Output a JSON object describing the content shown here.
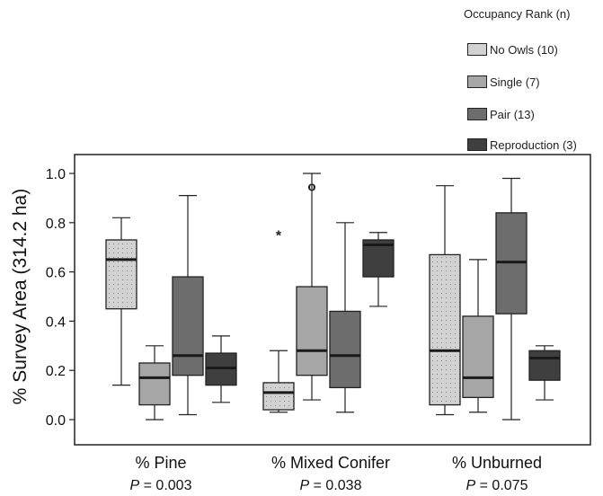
{
  "chart_data": {
    "type": "box",
    "ylabel": "% Survey Area (314.2 ha)",
    "ylim": [
      0,
      1.05
    ],
    "yticks": [
      "0.0",
      "0.2",
      "0.4",
      "0.6",
      "0.8",
      "1.0"
    ],
    "legend": {
      "title": "Occupancy Rank (n)",
      "placement": "top-right",
      "entries": [
        "No Owls (10)",
        "Single (7)",
        "Pair (13)",
        "Reproduction (3)"
      ]
    },
    "categories": [
      {
        "label": "% Pine",
        "p_prefix": "P",
        "p_value": "= 0.003"
      },
      {
        "label": "% Mixed Conifer",
        "p_prefix": "P",
        "p_value": "= 0.038"
      },
      {
        "label": "% Unburned",
        "p_prefix": "P",
        "p_value": "= 0.075"
      }
    ],
    "series": [
      {
        "name": "No Owls (10)",
        "color": "#d2d2d2",
        "stippled": true,
        "boxes": [
          {
            "min": 0.14,
            "q1": 0.45,
            "median": 0.65,
            "q3": 0.73,
            "max": 0.82
          },
          {
            "min": 0.03,
            "q1": 0.04,
            "median": 0.11,
            "q3": 0.15,
            "max": 0.28
          },
          {
            "min": 0.02,
            "q1": 0.06,
            "median": 0.28,
            "q3": 0.67,
            "max": 0.95
          }
        ]
      },
      {
        "name": "Single (7)",
        "color": "#a6a6a6",
        "stippled": false,
        "boxes": [
          {
            "min": 0.0,
            "q1": 0.06,
            "median": 0.17,
            "q3": 0.23,
            "max": 0.3
          },
          {
            "min": 0.08,
            "q1": 0.18,
            "median": 0.28,
            "q3": 0.54,
            "max": 1.0
          },
          {
            "min": 0.03,
            "q1": 0.09,
            "median": 0.17,
            "q3": 0.42,
            "max": 0.65
          }
        ]
      },
      {
        "name": "Pair (13)",
        "color": "#6d6d6d",
        "stippled": false,
        "boxes": [
          {
            "min": 0.02,
            "q1": 0.18,
            "median": 0.26,
            "q3": 0.58,
            "max": 0.91
          },
          {
            "min": 0.03,
            "q1": 0.13,
            "median": 0.26,
            "q3": 0.44,
            "max": 0.8
          },
          {
            "min": 0.0,
            "q1": 0.43,
            "median": 0.64,
            "q3": 0.84,
            "max": 0.98
          }
        ]
      },
      {
        "name": "Reproduction (3)",
        "color": "#3f3f3f",
        "stippled": false,
        "boxes": [
          {
            "min": 0.07,
            "q1": 0.14,
            "median": 0.21,
            "q3": 0.27,
            "max": 0.34
          },
          {
            "min": 0.46,
            "q1": 0.58,
            "median": 0.71,
            "q3": 0.73,
            "max": 0.76
          },
          {
            "min": 0.08,
            "q1": 0.16,
            "median": 0.25,
            "q3": 0.28,
            "max": 0.3
          }
        ]
      }
    ],
    "outliers": [
      {
        "category": 1,
        "series": 0,
        "y": 0.75,
        "symbol": "*"
      },
      {
        "category": 1,
        "series": 1,
        "y": 0.95,
        "symbol": "o"
      }
    ],
    "grid": false
  }
}
